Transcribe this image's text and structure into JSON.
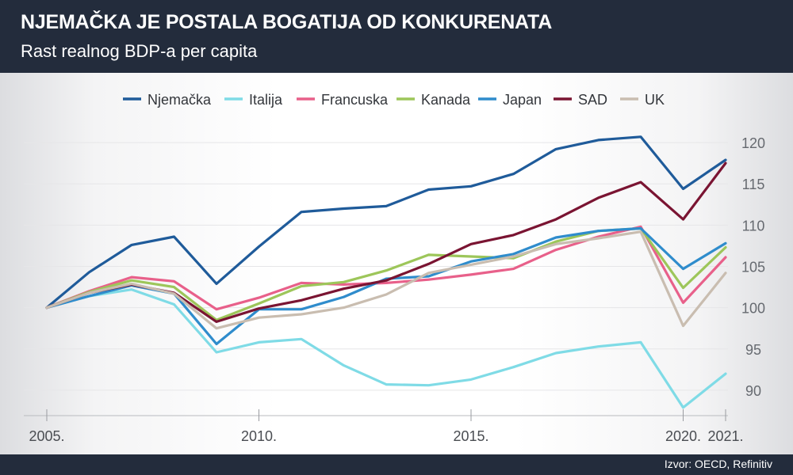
{
  "header": {
    "title": "NJEMAČKA JE POSTALA BOGATIJA OD KONKURENATA",
    "subtitle": "Rast realnog BDP-a per capita"
  },
  "footer": {
    "source": "Izvor: OECD, Refinitiv"
  },
  "chart_data": {
    "type": "line",
    "title": "NJEMAČKA JE POSTALA BOGATIJA OD KONKURENATA",
    "subtitle": "Rast realnog BDP-a per capita",
    "x": [
      2005,
      2006,
      2007,
      2008,
      2009,
      2010,
      2011,
      2012,
      2013,
      2014,
      2015,
      2016,
      2017,
      2018,
      2019,
      2020,
      2021
    ],
    "x_ticks": [
      {
        "value": 2005,
        "label": "2005."
      },
      {
        "value": 2010,
        "label": "2010."
      },
      {
        "value": 2015,
        "label": "2015."
      },
      {
        "value": 2020,
        "label": "2020."
      },
      {
        "value": 2021,
        "label": "2021."
      }
    ],
    "y_ticks": [
      90,
      95,
      100,
      105,
      110,
      115,
      120
    ],
    "ylim": [
      87.5,
      122.5
    ],
    "y_axis_side": "right",
    "grid": true,
    "legend_position": "top",
    "series": [
      {
        "name": "Njemačka",
        "color": "#1f5b9a",
        "values": [
          100,
          104.3,
          107.6,
          108.6,
          102.9,
          107.4,
          111.6,
          112.0,
          112.3,
          114.3,
          114.7,
          116.2,
          119.2,
          120.3,
          120.7,
          114.4,
          117.9
        ]
      },
      {
        "name": "Italija",
        "color": "#7fdbe6",
        "values": [
          100,
          101.4,
          102.2,
          100.4,
          94.6,
          95.8,
          96.2,
          93.0,
          90.7,
          90.6,
          91.3,
          92.8,
          94.5,
          95.3,
          95.8,
          87.9,
          92.0
        ]
      },
      {
        "name": "Francuska",
        "color": "#e8608a",
        "values": [
          100,
          102.0,
          103.7,
          103.2,
          99.8,
          101.2,
          103.0,
          102.8,
          103.0,
          103.4,
          104.0,
          104.7,
          107.0,
          108.6,
          109.8,
          100.6,
          106.1
        ]
      },
      {
        "name": "Kanada",
        "color": "#9dc65a",
        "values": [
          100,
          101.9,
          103.3,
          102.5,
          98.5,
          100.5,
          102.6,
          103.1,
          104.5,
          106.4,
          106.2,
          106.0,
          108.0,
          109.3,
          109.6,
          102.4,
          107.3
        ]
      },
      {
        "name": "Japan",
        "color": "#2f8ccc",
        "values": [
          100,
          101.4,
          102.7,
          101.7,
          95.6,
          99.8,
          99.8,
          101.3,
          103.5,
          103.8,
          105.6,
          106.5,
          108.5,
          109.3,
          109.6,
          104.7,
          107.8
        ]
      },
      {
        "name": "SAD",
        "color": "#7a1432",
        "values": [
          100,
          101.8,
          102.8,
          101.8,
          98.3,
          99.9,
          100.9,
          102.3,
          103.3,
          105.3,
          107.7,
          108.8,
          110.7,
          113.3,
          115.2,
          110.7,
          117.5
        ]
      },
      {
        "name": "UK",
        "color": "#c9bdb0",
        "values": [
          100,
          101.8,
          102.9,
          101.7,
          97.5,
          98.8,
          99.2,
          100.0,
          101.6,
          104.2,
          105.2,
          106.2,
          107.7,
          108.4,
          109.2,
          97.8,
          104.2
        ]
      }
    ]
  }
}
